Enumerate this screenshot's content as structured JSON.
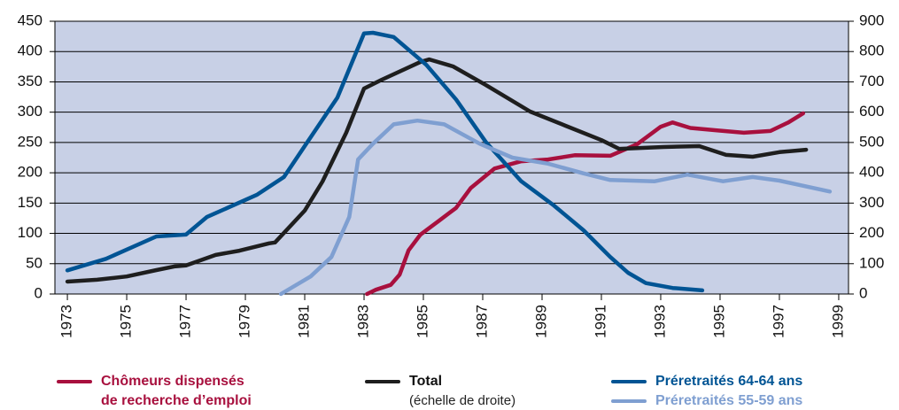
{
  "chart_data": {
    "type": "line",
    "xlim": [
      1972.58,
      1999.33
    ],
    "xticks": [
      1973,
      1975,
      1977,
      1979,
      1981,
      1983,
      1985,
      1987,
      1989,
      1991,
      1993,
      1995,
      1997,
      1999
    ],
    "ylim": [
      0,
      450
    ],
    "yticks": [
      0,
      50,
      100,
      150,
      200,
      250,
      300,
      350,
      400,
      450
    ],
    "y2lim": [
      0,
      900
    ],
    "y2ticks": [
      0,
      100,
      200,
      300,
      400,
      500,
      600,
      700,
      800,
      900
    ],
    "grid": true,
    "background": "#c8d0e6",
    "series": [
      {
        "name": "Chômeurs dispensés\nde recherche d’emploi",
        "color": "#a8103e",
        "x": [
          1983.1,
          1983.4,
          1983.9,
          1984.2,
          1984.5,
          1984.9,
          1985.5,
          1986.1,
          1986.6,
          1987.4,
          1988.3,
          1989.2,
          1990.1,
          1991.3,
          1992.2,
          1993.0,
          1993.4,
          1994.0,
          1994.9,
          1995.8,
          1996.7,
          1997.3,
          1997.8
        ],
        "values": [
          0,
          7,
          15,
          32,
          72,
          98,
          120,
          142,
          175,
          207,
          219,
          222,
          229,
          228,
          247,
          276,
          283,
          274,
          270,
          266,
          269,
          283,
          298
        ]
      },
      {
        "name": "Total",
        "legend_note": "(échelle de droite)",
        "color": "#1e1e1e",
        "axis": "y2",
        "x": [
          1973,
          1974,
          1975,
          1976,
          1976.6,
          1977,
          1978,
          1978.8,
          1979.8,
          1980,
          1981,
          1981.6,
          1982.4,
          1983,
          1983.6,
          1984.9,
          1985.2,
          1986,
          1987.1,
          1988.6,
          1989.8,
          1991,
          1991.6,
          1993.1,
          1994.3,
          1995.2,
          1996.1,
          1997,
          1997.9
        ],
        "values": [
          41,
          47,
          58,
          79,
          91,
          94,
          129,
          143,
          167,
          170,
          275,
          371,
          532,
          678,
          707,
          766,
          774,
          751,
          690,
          602,
          555,
          508,
          479,
          485,
          488,
          459,
          453,
          468,
          476
        ]
      },
      {
        "name": "Préretraités 64-64 ans",
        "color": "#005494",
        "x": [
          1973,
          1974.3,
          1976,
          1977,
          1977.7,
          1979.4,
          1980.3,
          1981,
          1982.1,
          1983,
          1983.3,
          1984,
          1985.1,
          1986.1,
          1987.1,
          1988.3,
          1989.4,
          1990.4,
          1991.3,
          1991.9,
          1992.5,
          1993.4,
          1994.4
        ],
        "values": [
          39,
          58,
          95,
          98,
          127,
          164,
          193,
          244,
          324,
          430,
          431,
          424,
          378,
          321,
          251,
          186,
          146,
          105,
          61,
          35,
          18,
          10,
          6
        ]
      },
      {
        "name": "Préretraités 55-59 ans",
        "color": "#7f9fd1",
        "x": [
          1980.2,
          1981.2,
          1981.9,
          1982.5,
          1982.8,
          1983.3,
          1984,
          1984.8,
          1985.7,
          1986.9,
          1988.0,
          1989.2,
          1990.4,
          1991.3,
          1992.8,
          1993.9,
          1995.1,
          1996.1,
          1997.0,
          1998.7
        ],
        "values": [
          0,
          29,
          61,
          127,
          222,
          248,
          280,
          286,
          280,
          248,
          225,
          215,
          199,
          188,
          186,
          197,
          186,
          193,
          187,
          169
        ]
      }
    ]
  }
}
